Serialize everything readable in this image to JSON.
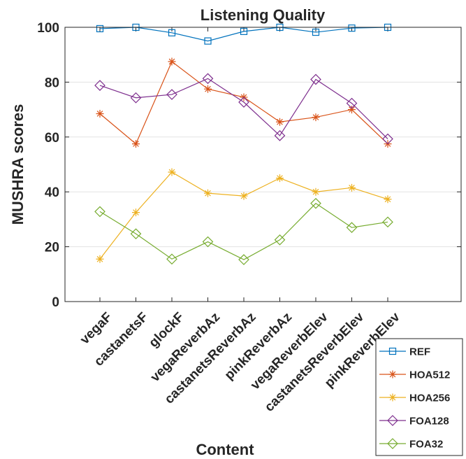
{
  "chart_data": {
    "type": "line",
    "title": "Listening Quality",
    "xlabel": "Content",
    "ylabel": "MUSHRA scores",
    "ylim": [
      0,
      100
    ],
    "yticks": [
      0,
      20,
      40,
      60,
      80,
      100
    ],
    "grid": "y-only",
    "legend_position": "bottom-right outside",
    "categories": [
      "vegaF",
      "castanetsF",
      "glockF",
      "vegaReverbAz",
      "castanetsReverbAz",
      "pinkReverbAz",
      "vegaReverbElev",
      "castanetsReverbElev",
      "pinkReverbElev"
    ],
    "series": [
      {
        "name": "REF",
        "color": "#0072BD",
        "marker": "square",
        "values": [
          99.5,
          100,
          98,
          95,
          98.5,
          100,
          98.2,
          99.7,
          100
        ]
      },
      {
        "name": "HOA512",
        "color": "#D95319",
        "marker": "asterisk",
        "values": [
          68.5,
          57.5,
          87.5,
          77.5,
          74.5,
          65.5,
          67.2,
          70,
          57.5
        ]
      },
      {
        "name": "HOA256",
        "color": "#EDB120",
        "marker": "asterisk",
        "values": [
          15.5,
          32.5,
          47.2,
          39.5,
          38.5,
          45,
          40,
          41.5,
          37.3
        ]
      },
      {
        "name": "FOA128",
        "color": "#7E2F8E",
        "marker": "diamond",
        "values": [
          78.8,
          74.3,
          75.5,
          81.3,
          72.7,
          60.5,
          81,
          72.3,
          59.3
        ]
      },
      {
        "name": "FOA32",
        "color": "#77AC30",
        "marker": "diamond",
        "values": [
          32.8,
          24.7,
          15.5,
          21.8,
          15.3,
          22.5,
          35.8,
          27,
          29
        ]
      }
    ]
  }
}
